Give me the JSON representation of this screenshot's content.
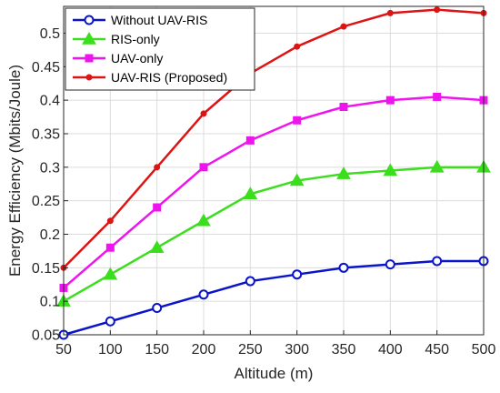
{
  "chart_data": {
    "type": "line",
    "title": "",
    "xlabel": "Altitude (m)",
    "ylabel": "Energy Efficiency (Mbits/Joule)",
    "x": [
      50,
      100,
      150,
      200,
      250,
      300,
      350,
      400,
      450,
      500
    ],
    "xlim": [
      50,
      500
    ],
    "ylim": [
      0.05,
      0.54
    ],
    "xticks": [
      "50",
      "100",
      "150",
      "200",
      "250",
      "300",
      "350",
      "400",
      "450",
      "500"
    ],
    "yticks": [
      "0.05",
      "0.1",
      "0.15",
      "0.2",
      "0.25",
      "0.3",
      "0.35",
      "0.4",
      "0.45",
      "0.5"
    ],
    "grid": true,
    "legend_position": "top-left",
    "series": [
      {
        "name": "Without UAV-RIS",
        "color": "#0a14c8",
        "marker": "circle",
        "values": [
          0.05,
          0.07,
          0.09,
          0.11,
          0.13,
          0.14,
          0.15,
          0.155,
          0.16,
          0.16
        ]
      },
      {
        "name": "RIS-only",
        "color": "#3ade1c",
        "marker": "triangle",
        "values": [
          0.1,
          0.14,
          0.18,
          0.22,
          0.26,
          0.28,
          0.29,
          0.295,
          0.3,
          0.3
        ]
      },
      {
        "name": "UAV-only",
        "color": "#ee14ee",
        "marker": "square",
        "values": [
          0.12,
          0.18,
          0.24,
          0.3,
          0.34,
          0.37,
          0.39,
          0.4,
          0.405,
          0.4
        ]
      },
      {
        "name": "UAV-RIS (Proposed)",
        "color": "#dc1414",
        "marker": "dot",
        "values": [
          0.15,
          0.22,
          0.3,
          0.38,
          0.44,
          0.48,
          0.51,
          0.53,
          0.535,
          0.53
        ]
      }
    ]
  }
}
